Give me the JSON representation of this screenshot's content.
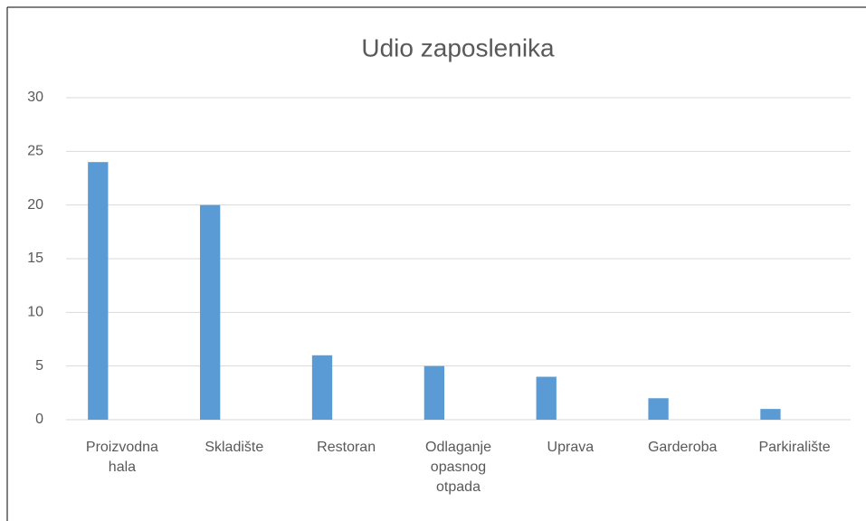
{
  "chart_data": {
    "type": "bar",
    "title": "Udio zaposlenika",
    "categories": [
      "Proizvodna hala",
      "Skladište",
      "Restoran",
      "Odlaganje opasnog otpada",
      "Uprava",
      "Garderoba",
      "Parkiralište"
    ],
    "values": [
      24,
      20,
      6,
      5,
      4,
      2,
      1
    ],
    "color": "#5b9bd5",
    "ylim": [
      0,
      30
    ],
    "yticks": [
      0,
      5,
      10,
      15,
      20,
      25,
      30
    ],
    "grid": true
  }
}
